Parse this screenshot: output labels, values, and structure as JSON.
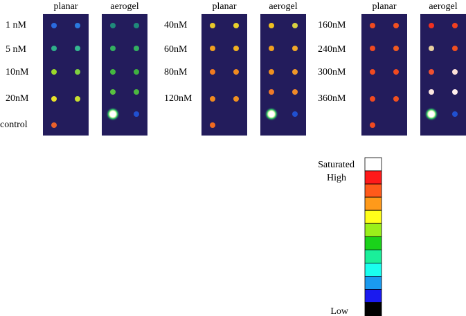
{
  "groups": [
    {
      "columns": [
        "planar",
        "aerogel"
      ],
      "rows": [
        "1 nM",
        "5 nM",
        "10nM",
        "20nM",
        "control"
      ]
    },
    {
      "columns": [
        "planar",
        "aerogel"
      ],
      "rows": [
        "40nM",
        "60nM",
        "80nM",
        "120nM"
      ]
    },
    {
      "columns": [
        "planar",
        "aerogel"
      ],
      "rows": [
        "160nM",
        "240nM",
        "300nM",
        "360nM"
      ]
    }
  ],
  "legend": {
    "saturated": "Saturated",
    "high": "High",
    "low": "Low"
  }
}
